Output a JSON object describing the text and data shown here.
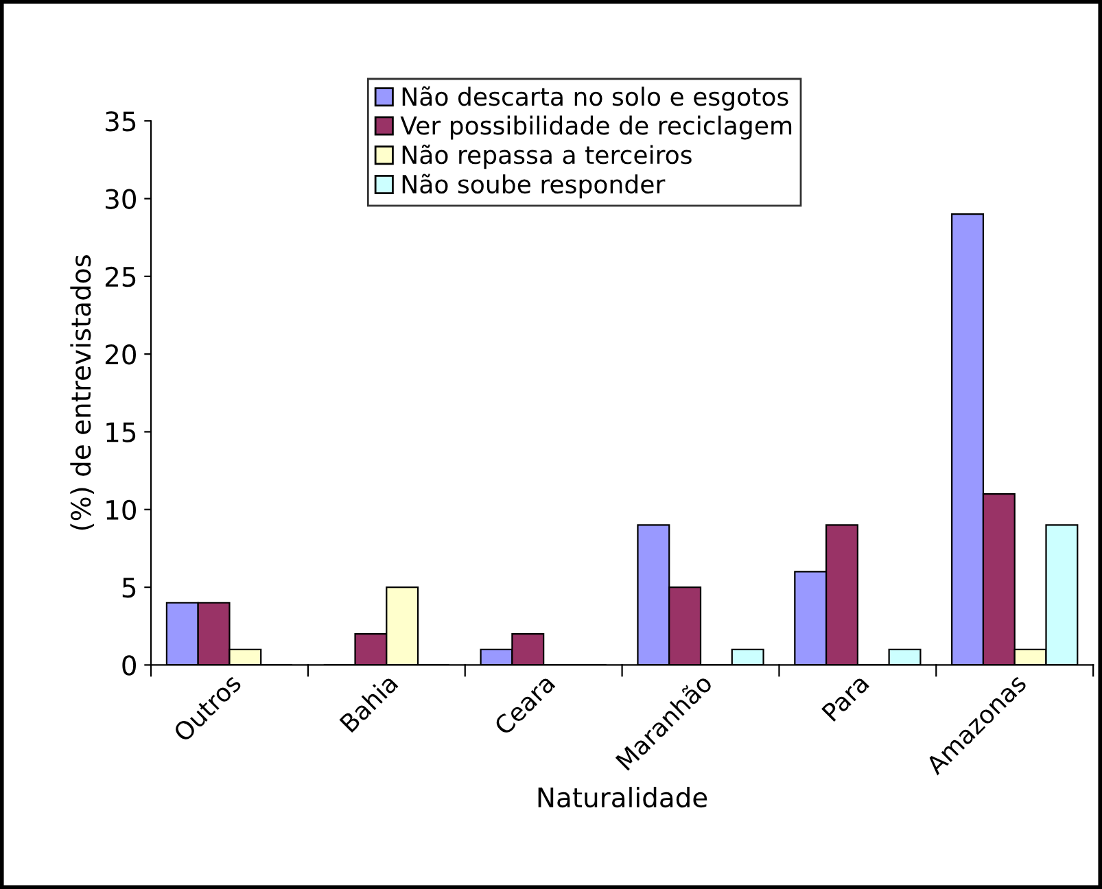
{
  "chart_data": {
    "type": "bar",
    "xlabel": "Naturalidade",
    "ylabel": "(%) de entrevistados",
    "categories": [
      "Outros",
      "Bahia",
      "Ceara",
      "Maranhão",
      "Para",
      "Amazonas"
    ],
    "series": [
      {
        "name": "Não descarta no solo e esgotos",
        "color": "#9999ff",
        "values": [
          4,
          0,
          1,
          9,
          6,
          29
        ]
      },
      {
        "name": "Ver possibilidade de reciclagem",
        "color": "#993366",
        "values": [
          4,
          2,
          2,
          5,
          9,
          11
        ]
      },
      {
        "name": "Não repassa a terceiros",
        "color": "#ffffcc",
        "values": [
          1,
          5,
          0,
          0,
          0,
          1
        ]
      },
      {
        "name": "Não soube responder",
        "color": "#ccffff",
        "values": [
          0,
          0,
          0,
          1,
          1,
          9
        ]
      }
    ],
    "ylim": [
      0,
      35
    ],
    "yticks": [
      0,
      5,
      10,
      15,
      20,
      25,
      30,
      35
    ],
    "grid": false,
    "legend": "top"
  }
}
